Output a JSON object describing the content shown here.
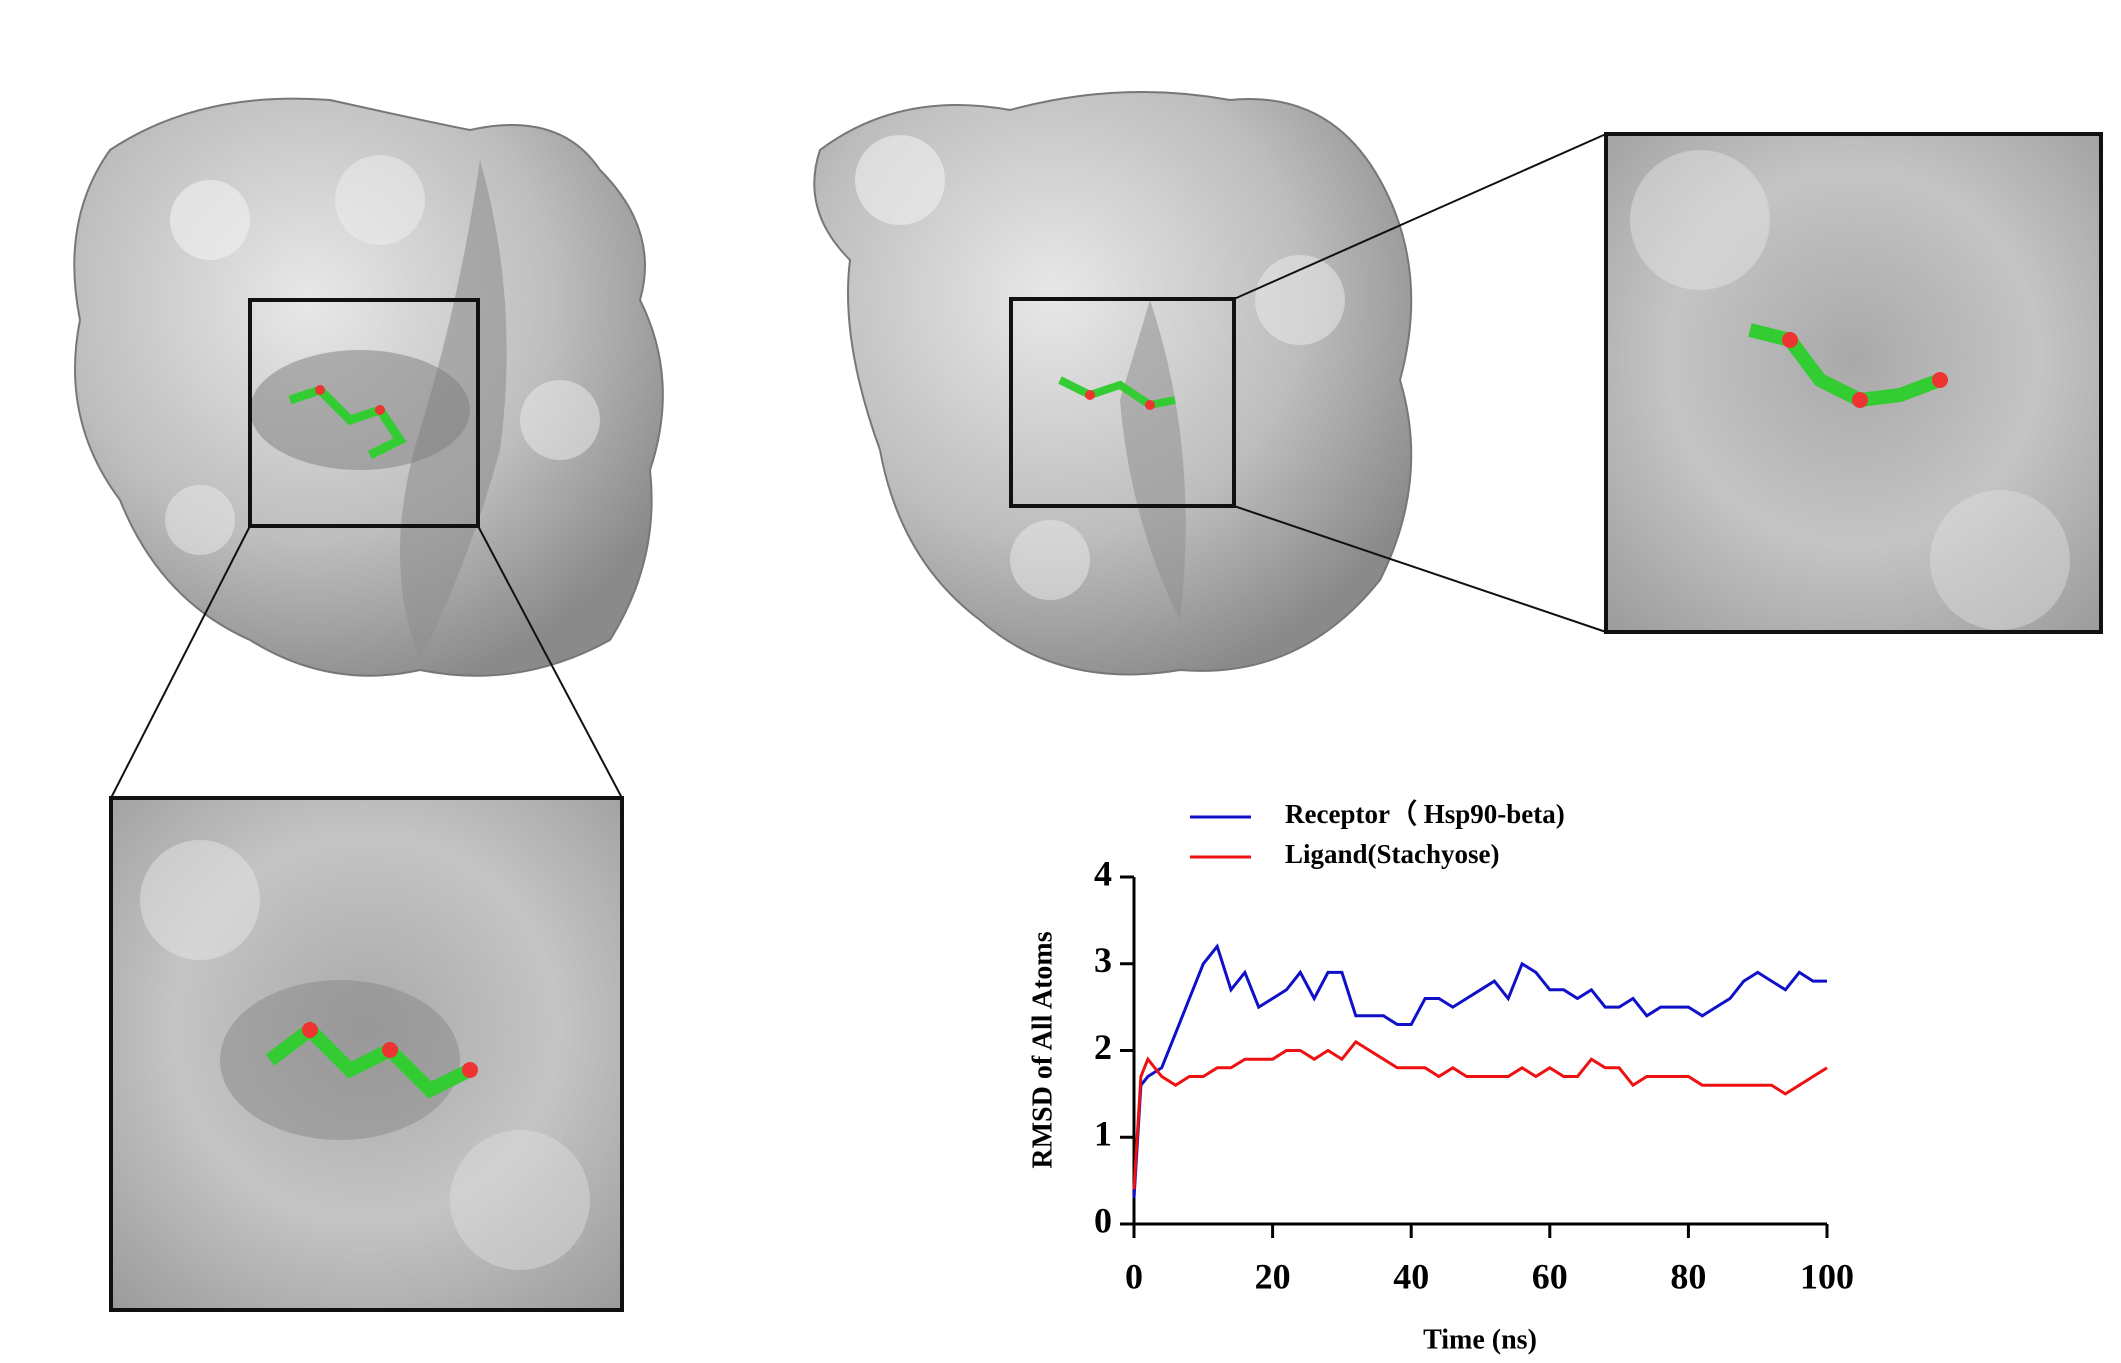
{
  "chart_data": {
    "type": "line",
    "x_label": "Time (ns)",
    "y_label": "RMSD of All Atoms",
    "x": [
      0,
      1,
      2,
      4,
      6,
      8,
      10,
      12,
      14,
      16,
      18,
      20,
      22,
      24,
      26,
      28,
      30,
      32,
      34,
      36,
      38,
      40,
      42,
      44,
      46,
      48,
      50,
      52,
      54,
      56,
      58,
      60,
      62,
      64,
      66,
      68,
      70,
      72,
      74,
      76,
      78,
      80,
      82,
      84,
      86,
      88,
      90,
      92,
      94,
      96,
      98,
      100
    ],
    "series": [
      {
        "name": "Receptor（ Hsp90-beta)",
        "color": "#1010c8",
        "values": [
          0.3,
          1.6,
          1.7,
          1.8,
          2.2,
          2.6,
          3.0,
          3.2,
          2.7,
          2.9,
          2.5,
          2.6,
          2.7,
          2.9,
          2.6,
          2.9,
          2.9,
          2.4,
          2.4,
          2.4,
          2.3,
          2.3,
          2.6,
          2.6,
          2.5,
          2.6,
          2.7,
          2.8,
          2.6,
          3.0,
          2.9,
          2.7,
          2.7,
          2.6,
          2.7,
          2.5,
          2.5,
          2.6,
          2.4,
          2.5,
          2.5,
          2.5,
          2.4,
          2.5,
          2.6,
          2.8,
          2.9,
          2.8,
          2.7,
          2.9,
          2.8,
          2.8
        ]
      },
      {
        "name": "Ligand(Stachyose)",
        "color": "#ee1111",
        "values": [
          0.4,
          1.7,
          1.9,
          1.7,
          1.6,
          1.7,
          1.7,
          1.8,
          1.8,
          1.9,
          1.9,
          1.9,
          2.0,
          2.0,
          1.9,
          2.0,
          1.9,
          2.1,
          2.0,
          1.9,
          1.8,
          1.8,
          1.8,
          1.7,
          1.8,
          1.7,
          1.7,
          1.7,
          1.7,
          1.8,
          1.7,
          1.8,
          1.7,
          1.7,
          1.9,
          1.8,
          1.8,
          1.6,
          1.7,
          1.7,
          1.7,
          1.7,
          1.6,
          1.6,
          1.6,
          1.6,
          1.6,
          1.6,
          1.5,
          1.6,
          1.7,
          1.8
        ]
      }
    ],
    "xlim": [
      0,
      100
    ],
    "xticks": [
      0,
      20,
      40,
      60,
      80,
      100
    ],
    "ylim": [
      0,
      4
    ],
    "yticks": [
      0,
      1,
      2,
      3,
      4
    ]
  }
}
